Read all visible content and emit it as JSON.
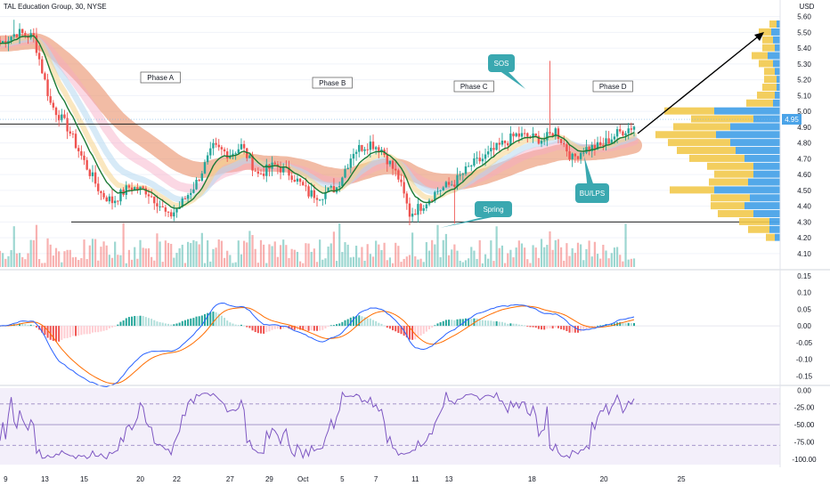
{
  "header": {
    "symbol_title": "TAL Education Group, 30, NYSE"
  },
  "colors": {
    "up": "#26a69a",
    "down": "#ef5350",
    "ema_fast": "#1b7a35",
    "macd_line": "#2962ff",
    "signal_line": "#ff6d00",
    "rsi_line": "#7e57c2",
    "label_teal": "#3aa8b0",
    "vp_blue": "#4aa3e8",
    "vp_yellow": "#f2c94c"
  },
  "annotations": {
    "phase_a": "Phase A",
    "phase_b": "Phase B",
    "phase_c": "Phase C",
    "phase_d": "Phase D",
    "sos": "SOS",
    "spring": "Spring",
    "bu_lps": "BU/LPS"
  },
  "chart_data": [
    {
      "type": "candlestick",
      "title": "TAL Education Group, 30, NYSE",
      "currency": "USD",
      "x_tick_labels": [
        "9",
        "13",
        "15",
        "20",
        "22",
        "27",
        "29",
        "Oct",
        "5",
        "7",
        "11",
        "13",
        "18",
        "20",
        "25"
      ],
      "y_tick_labels": [
        "5.60",
        "5.50",
        "5.40",
        "5.30",
        "5.20",
        "5.10",
        "5.00",
        "4.90",
        "4.80",
        "4.70",
        "4.60",
        "4.50",
        "4.40",
        "4.30",
        "4.20",
        "4.10"
      ],
      "ylim": [
        4.06,
        5.66
      ],
      "last_price": "4.95",
      "close_path": [
        [
          0,
          5.43
        ],
        [
          6,
          5.5
        ],
        [
          12,
          5.47
        ],
        [
          18,
          5.05
        ],
        [
          24,
          4.9
        ],
        [
          30,
          4.68
        ],
        [
          36,
          4.48
        ],
        [
          40,
          4.43
        ],
        [
          46,
          4.52
        ],
        [
          52,
          4.5
        ],
        [
          56,
          4.43
        ],
        [
          60,
          4.33
        ],
        [
          64,
          4.4
        ],
        [
          70,
          4.55
        ],
        [
          76,
          4.77
        ],
        [
          82,
          4.73
        ],
        [
          86,
          4.78
        ],
        [
          92,
          4.6
        ],
        [
          98,
          4.66
        ],
        [
          104,
          4.6
        ],
        [
          110,
          4.48
        ],
        [
          114,
          4.47
        ],
        [
          120,
          4.52
        ],
        [
          126,
          4.75
        ],
        [
          132,
          4.8
        ],
        [
          136,
          4.76
        ],
        [
          142,
          4.58
        ],
        [
          146,
          4.35
        ],
        [
          150,
          4.4
        ],
        [
          156,
          4.5
        ],
        [
          162,
          4.55
        ],
        [
          168,
          4.66
        ],
        [
          172,
          4.7
        ],
        [
          178,
          4.78
        ],
        [
          184,
          4.85
        ],
        [
          188,
          4.84
        ],
        [
          194,
          4.82
        ],
        [
          198,
          4.88
        ],
        [
          204,
          4.7
        ],
        [
          208,
          4.76
        ],
        [
          214,
          4.78
        ],
        [
          220,
          4.86
        ],
        [
          226,
          4.91
        ]
      ],
      "horizontal_levels": [
        4.3,
        4.92,
        4.95
      ],
      "volume_profile": [
        {
          "price": 5.55,
          "buy": 8,
          "sell": 4
        },
        {
          "price": 5.5,
          "buy": 14,
          "sell": 10
        },
        {
          "price": 5.45,
          "buy": 12,
          "sell": 8
        },
        {
          "price": 5.4,
          "buy": 14,
          "sell": 6
        },
        {
          "price": 5.35,
          "buy": 18,
          "sell": 14
        },
        {
          "price": 5.3,
          "buy": 16,
          "sell": 8
        },
        {
          "price": 5.25,
          "buy": 12,
          "sell": 6
        },
        {
          "price": 5.2,
          "buy": 14,
          "sell": 4
        },
        {
          "price": 5.15,
          "buy": 16,
          "sell": 4
        },
        {
          "price": 5.1,
          "buy": 20,
          "sell": 6
        },
        {
          "price": 5.05,
          "buy": 30,
          "sell": 8
        },
        {
          "price": 5.0,
          "buy": 56,
          "sell": 74
        },
        {
          "price": 4.95,
          "buy": 70,
          "sell": 30
        },
        {
          "price": 4.9,
          "buy": 64,
          "sell": 56
        },
        {
          "price": 4.85,
          "buy": 68,
          "sell": 72
        },
        {
          "price": 4.8,
          "buy": 70,
          "sell": 56
        },
        {
          "price": 4.75,
          "buy": 66,
          "sell": 50
        },
        {
          "price": 4.7,
          "buy": 62,
          "sell": 40
        },
        {
          "price": 4.65,
          "buy": 52,
          "sell": 30
        },
        {
          "price": 4.6,
          "buy": 44,
          "sell": 30
        },
        {
          "price": 4.55,
          "buy": 44,
          "sell": 36
        },
        {
          "price": 4.5,
          "buy": 50,
          "sell": 74
        },
        {
          "price": 4.45,
          "buy": 44,
          "sell": 34
        },
        {
          "price": 4.4,
          "buy": 38,
          "sell": 40
        },
        {
          "price": 4.35,
          "buy": 40,
          "sell": 30
        },
        {
          "price": 4.3,
          "buy": 34,
          "sell": 12
        },
        {
          "price": 4.25,
          "buy": 24,
          "sell": 12
        },
        {
          "price": 4.2,
          "buy": 10,
          "sell": 6
        }
      ]
    },
    {
      "type": "line",
      "series": [
        {},
        {}
      ],
      "y_tick_labels": [
        "0.15",
        "0.10",
        "0.05",
        "0.00",
        "-0.05",
        "-0.10",
        "-0.15"
      ],
      "ylim": [
        -0.17,
        0.16
      ]
    },
    {
      "type": "line",
      "series": [
        {}
      ],
      "y_tick_labels": [
        "0.00",
        "-25.00",
        "-50.00",
        "-75.00",
        "-100.00"
      ],
      "ylim": [
        -108,
        3
      ],
      "reference_levels": [
        -20,
        -50,
        -80
      ]
    }
  ]
}
